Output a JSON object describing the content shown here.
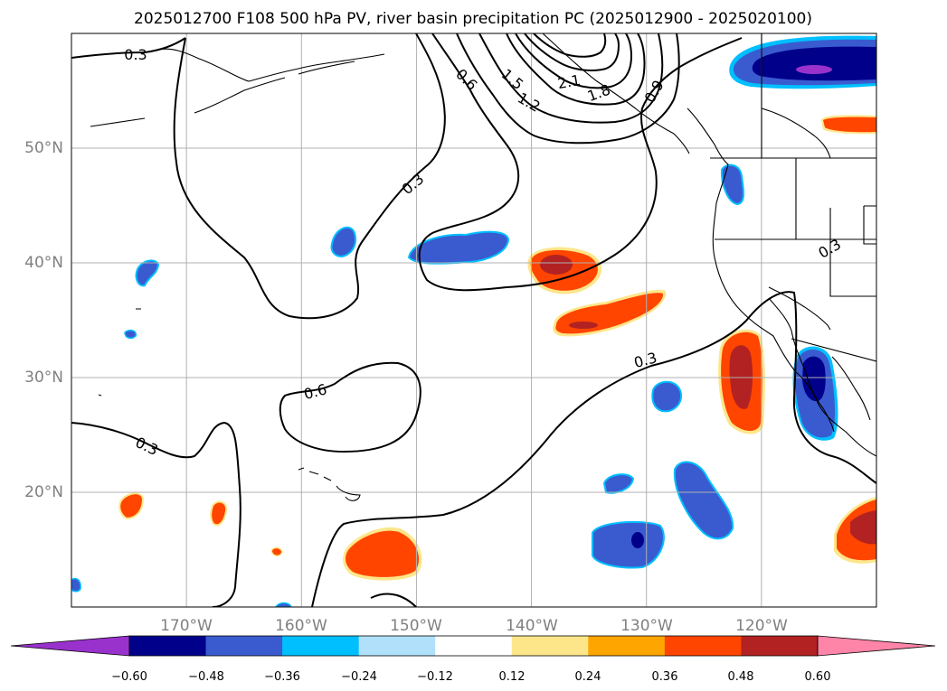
{
  "title": "2025012700 F108 500 hPa PV, river basin precipitation PC (2025012900 - 2025020100)",
  "map": {
    "lon_labels": [
      "170°W",
      "160°W",
      "150°W",
      "140°W",
      "130°W",
      "120°W"
    ],
    "lat_labels": [
      "50°N",
      "40°N",
      "30°N",
      "20°N"
    ],
    "lon_values": [
      -170,
      -160,
      -150,
      -140,
      -130,
      -120
    ],
    "lat_values": [
      50,
      40,
      30,
      20
    ],
    "lon_range": [
      -180,
      -110
    ],
    "lat_range": [
      10,
      60
    ],
    "grid": true,
    "contour_labels": [
      "0.3",
      "0.6",
      "1.5",
      "1.2",
      "2.1",
      "1.8",
      "0.9",
      "0.3",
      "0.3",
      "0.6",
      "0.3",
      "0.3"
    ]
  },
  "colorbar": {
    "ticks": [
      "−0.60",
      "−0.48",
      "−0.36",
      "−0.24",
      "−0.12",
      "0.12",
      "0.24",
      "0.36",
      "0.48",
      "0.60"
    ],
    "colors": [
      "#9932cc",
      "#00008b",
      "#3a5bd0",
      "#00bfff",
      "#b0e0fa",
      "#ffffff",
      "#fde68a",
      "#ffa500",
      "#ff4500",
      "#b22222",
      "#ff85a8"
    ],
    "extend": "both"
  },
  "colors": {
    "neg_light": "#00bfff",
    "neg_mid": "#3a5bd0",
    "neg_dark": "#00008b",
    "neg_extreme": "#9932cc",
    "pos_light": "#fde68a",
    "pos_mid": "#ff4500",
    "pos_dark": "#b22222",
    "contour": "#000000",
    "grid": "#b0b0b0"
  }
}
